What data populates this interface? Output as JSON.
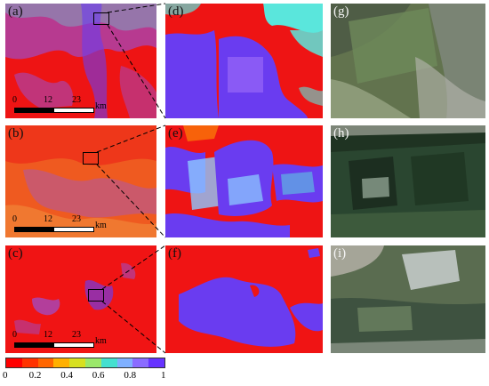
{
  "panels": {
    "a": {
      "label": "(a)"
    },
    "b": {
      "label": "(b)"
    },
    "c": {
      "label": "(c)"
    },
    "d": {
      "label": "(d)"
    },
    "e": {
      "label": "(e)"
    },
    "f": {
      "label": "(f)"
    },
    "g": {
      "label": "(g)"
    },
    "h": {
      "label": "(h)"
    },
    "i": {
      "label": "(i)"
    }
  },
  "scalebar": {
    "t0": "0",
    "t1": "12",
    "t2": "23",
    "unit": "km"
  },
  "colorbar": {
    "ticks": [
      "0",
      "0.2",
      "0.4",
      "0.6",
      "0.8",
      "1"
    ],
    "colors": [
      "#ff0000",
      "#ff3300",
      "#ff6600",
      "#ffb000",
      "#d8e020",
      "#9be86a",
      "#44e0d0",
      "#7fb0ff",
      "#8a6cff",
      "#6633ff"
    ]
  },
  "palette": {
    "red": "#f01414",
    "orange": "#f05a1e",
    "purple": "#6a3cf0",
    "violet": "#8a5af5",
    "cyan": "#5ae6dc",
    "lightblue": "#8cc8ff"
  }
}
